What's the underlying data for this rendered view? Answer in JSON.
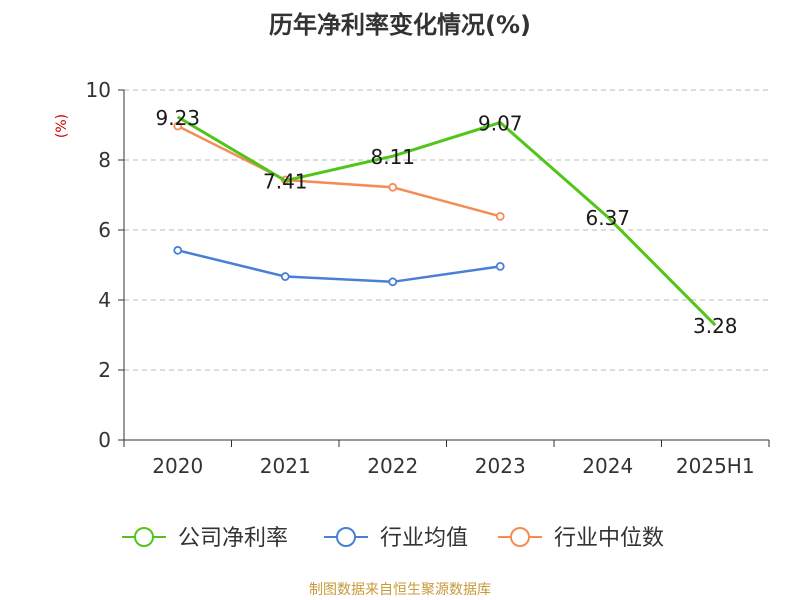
{
  "chart_data": {
    "type": "line",
    "title": "历年净利率变化情况(%)",
    "ylabel": "(%)",
    "categories": [
      "2020",
      "2021",
      "2022",
      "2023",
      "2024",
      "2025H1"
    ],
    "ylim": [
      0,
      10
    ],
    "yticks": [
      "0",
      "2",
      "4",
      "6",
      "8",
      "10"
    ],
    "grid": true,
    "legend_position": "bottom",
    "series": [
      {
        "name": "公司净利率",
        "color": "#52c41a",
        "values": [
          9.23,
          7.41,
          8.11,
          9.07,
          6.37,
          3.28
        ],
        "labels": [
          "9.23",
          "7.41",
          "8.11",
          "9.07",
          "6.37",
          "3.28"
        ]
      },
      {
        "name": "行业均值",
        "color": "#4a7fd6",
        "values": [
          5.42,
          4.67,
          4.52,
          4.96,
          null,
          null
        ],
        "labels": []
      },
      {
        "name": "行业中位数",
        "color": "#f58c57",
        "values": [
          8.97,
          7.43,
          7.22,
          6.39,
          null,
          null
        ],
        "labels": []
      }
    ]
  },
  "source": "制图数据来自恒生聚源数据库",
  "colors": {
    "axis": "#333333",
    "grid": "#bbbbbb",
    "ylabel": "#cc0000",
    "source": "#c89a3a"
  }
}
